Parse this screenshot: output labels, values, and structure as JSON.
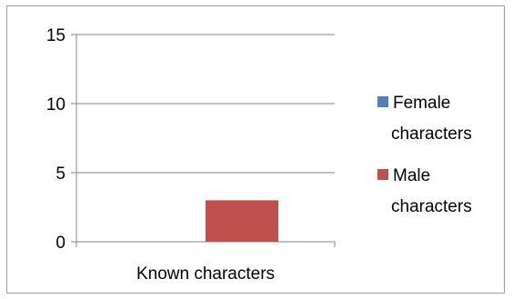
{
  "chart_data": {
    "type": "bar",
    "categories": [
      "Known characters"
    ],
    "series": [
      {
        "name": "Female characters",
        "values": [
          0
        ],
        "color": "#4f81bd"
      },
      {
        "name": "Male characters",
        "values": [
          3
        ],
        "color": "#c0504d"
      }
    ],
    "ylim": [
      0,
      15
    ],
    "yticks": [
      0,
      5,
      10,
      15
    ],
    "grid": true,
    "legend": "right",
    "title": "",
    "xlabel": "",
    "ylabel": ""
  },
  "legend": {
    "items": [
      {
        "line1": "Female",
        "line2": "characters"
      },
      {
        "line1": "Male",
        "line2": "characters"
      }
    ]
  }
}
